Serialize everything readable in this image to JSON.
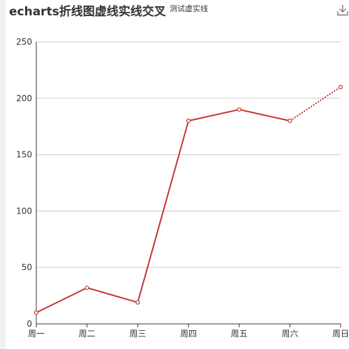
{
  "title": "echarts折线图虚线实线交叉",
  "subtitle": "测试虚实线",
  "toolbox": {
    "icon": "download-icon"
  },
  "colors": {
    "line": "#c23531",
    "grid": "#cccccc",
    "axis": "#333333"
  },
  "chart_data": {
    "type": "line",
    "title": "echarts折线图虚线实线交叉",
    "subtitle": "测试虚实线",
    "categories": [
      "周一",
      "周二",
      "周三",
      "周四",
      "周五",
      "周六",
      "周日"
    ],
    "values": [
      10,
      32,
      19,
      180,
      190,
      180,
      210
    ],
    "solid_until_index": 5,
    "dashed_from_index": 5,
    "ylim": [
      0,
      250
    ],
    "yticks": [
      0,
      50,
      100,
      150,
      200,
      250
    ],
    "grid": true,
    "legend": "none"
  }
}
